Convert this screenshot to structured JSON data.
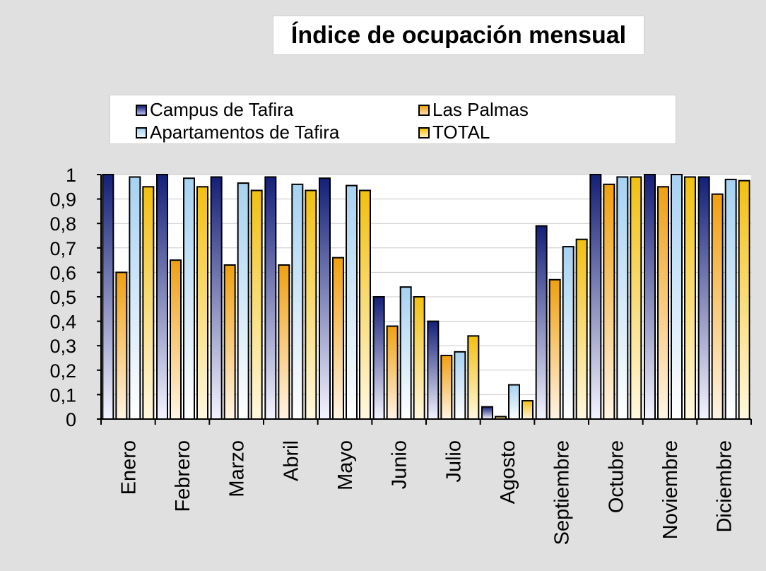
{
  "chart_data": {
    "type": "bar",
    "title": "Índice de ocupación mensual",
    "categories": [
      "Enero",
      "Febrero",
      "Marzo",
      "Abril",
      "Mayo",
      "Junio",
      "Julio",
      "Agosto",
      "Septiembre",
      "Octubre",
      "Noviembre",
      "Diciembre"
    ],
    "series": [
      {
        "name": "Campus de Tafira",
        "color_top": "#141f78",
        "color_bottom": "#f4f4ff",
        "values": [
          1.0,
          1.0,
          0.99,
          0.99,
          0.985,
          0.5,
          0.4,
          0.05,
          0.79,
          1.0,
          1.0,
          0.99
        ]
      },
      {
        "name": "Las Palmas",
        "color_top": "#f0a010",
        "color_bottom": "#fff4e6",
        "values": [
          0.6,
          0.65,
          0.63,
          0.63,
          0.66,
          0.38,
          0.26,
          0.01,
          0.57,
          0.96,
          0.95,
          0.92
        ]
      },
      {
        "name": "Apartamentos de Tafira",
        "color_top": "#a6d2f2",
        "color_bottom": "#ffffff",
        "values": [
          0.99,
          0.985,
          0.965,
          0.96,
          0.955,
          0.54,
          0.275,
          0.14,
          0.705,
          0.99,
          1.0,
          0.98
        ]
      },
      {
        "name": "TOTAL",
        "color_top": "#f2c010",
        "color_bottom": "#fff8e0",
        "values": [
          0.95,
          0.95,
          0.935,
          0.935,
          0.935,
          0.5,
          0.34,
          0.075,
          0.735,
          0.99,
          0.99,
          0.975
        ]
      }
    ],
    "legend_order": [
      "Campus de Tafira",
      "Las Palmas",
      "Apartamentos de Tafira",
      "TOTAL"
    ],
    "yticks": [
      "0",
      "0,1",
      "0,2",
      "0,3",
      "0,4",
      "0,5",
      "0,6",
      "0,7",
      "0,8",
      "0,9",
      "1"
    ],
    "ylim": [
      0,
      1
    ],
    "grid": true,
    "legend_position": "top"
  }
}
